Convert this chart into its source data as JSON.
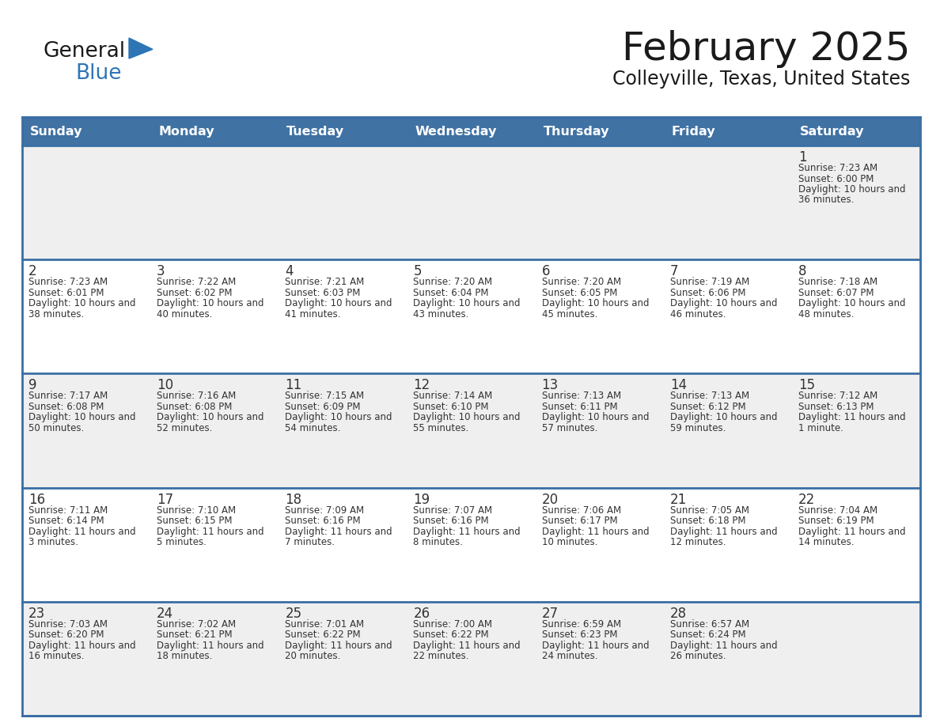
{
  "title": "February 2025",
  "subtitle": "Colleyville, Texas, United States",
  "header_bg": "#4072a4",
  "header_text": "#ffffff",
  "row_bg_odd": "#efefef",
  "row_bg_even": "#ffffff",
  "border_color": "#3a6ea5",
  "day_headers": [
    "Sunday",
    "Monday",
    "Tuesday",
    "Wednesday",
    "Thursday",
    "Friday",
    "Saturday"
  ],
  "text_color": "#333333",
  "number_color": "#333333",
  "logo_general_color": "#1a1a1a",
  "logo_blue_color": "#2e75b6",
  "days": [
    {
      "day": 1,
      "col": 6,
      "row": 0,
      "sunrise": "7:23 AM",
      "sunset": "6:00 PM",
      "daylight": "10 hours and 36 minutes."
    },
    {
      "day": 2,
      "col": 0,
      "row": 1,
      "sunrise": "7:23 AM",
      "sunset": "6:01 PM",
      "daylight": "10 hours and 38 minutes."
    },
    {
      "day": 3,
      "col": 1,
      "row": 1,
      "sunrise": "7:22 AM",
      "sunset": "6:02 PM",
      "daylight": "10 hours and 40 minutes."
    },
    {
      "day": 4,
      "col": 2,
      "row": 1,
      "sunrise": "7:21 AM",
      "sunset": "6:03 PM",
      "daylight": "10 hours and 41 minutes."
    },
    {
      "day": 5,
      "col": 3,
      "row": 1,
      "sunrise": "7:20 AM",
      "sunset": "6:04 PM",
      "daylight": "10 hours and 43 minutes."
    },
    {
      "day": 6,
      "col": 4,
      "row": 1,
      "sunrise": "7:20 AM",
      "sunset": "6:05 PM",
      "daylight": "10 hours and 45 minutes."
    },
    {
      "day": 7,
      "col": 5,
      "row": 1,
      "sunrise": "7:19 AM",
      "sunset": "6:06 PM",
      "daylight": "10 hours and 46 minutes."
    },
    {
      "day": 8,
      "col": 6,
      "row": 1,
      "sunrise": "7:18 AM",
      "sunset": "6:07 PM",
      "daylight": "10 hours and 48 minutes."
    },
    {
      "day": 9,
      "col": 0,
      "row": 2,
      "sunrise": "7:17 AM",
      "sunset": "6:08 PM",
      "daylight": "10 hours and 50 minutes."
    },
    {
      "day": 10,
      "col": 1,
      "row": 2,
      "sunrise": "7:16 AM",
      "sunset": "6:08 PM",
      "daylight": "10 hours and 52 minutes."
    },
    {
      "day": 11,
      "col": 2,
      "row": 2,
      "sunrise": "7:15 AM",
      "sunset": "6:09 PM",
      "daylight": "10 hours and 54 minutes."
    },
    {
      "day": 12,
      "col": 3,
      "row": 2,
      "sunrise": "7:14 AM",
      "sunset": "6:10 PM",
      "daylight": "10 hours and 55 minutes."
    },
    {
      "day": 13,
      "col": 4,
      "row": 2,
      "sunrise": "7:13 AM",
      "sunset": "6:11 PM",
      "daylight": "10 hours and 57 minutes."
    },
    {
      "day": 14,
      "col": 5,
      "row": 2,
      "sunrise": "7:13 AM",
      "sunset": "6:12 PM",
      "daylight": "10 hours and 59 minutes."
    },
    {
      "day": 15,
      "col": 6,
      "row": 2,
      "sunrise": "7:12 AM",
      "sunset": "6:13 PM",
      "daylight": "11 hours and 1 minute."
    },
    {
      "day": 16,
      "col": 0,
      "row": 3,
      "sunrise": "7:11 AM",
      "sunset": "6:14 PM",
      "daylight": "11 hours and 3 minutes."
    },
    {
      "day": 17,
      "col": 1,
      "row": 3,
      "sunrise": "7:10 AM",
      "sunset": "6:15 PM",
      "daylight": "11 hours and 5 minutes."
    },
    {
      "day": 18,
      "col": 2,
      "row": 3,
      "sunrise": "7:09 AM",
      "sunset": "6:16 PM",
      "daylight": "11 hours and 7 minutes."
    },
    {
      "day": 19,
      "col": 3,
      "row": 3,
      "sunrise": "7:07 AM",
      "sunset": "6:16 PM",
      "daylight": "11 hours and 8 minutes."
    },
    {
      "day": 20,
      "col": 4,
      "row": 3,
      "sunrise": "7:06 AM",
      "sunset": "6:17 PM",
      "daylight": "11 hours and 10 minutes."
    },
    {
      "day": 21,
      "col": 5,
      "row": 3,
      "sunrise": "7:05 AM",
      "sunset": "6:18 PM",
      "daylight": "11 hours and 12 minutes."
    },
    {
      "day": 22,
      "col": 6,
      "row": 3,
      "sunrise": "7:04 AM",
      "sunset": "6:19 PM",
      "daylight": "11 hours and 14 minutes."
    },
    {
      "day": 23,
      "col": 0,
      "row": 4,
      "sunrise": "7:03 AM",
      "sunset": "6:20 PM",
      "daylight": "11 hours and 16 minutes."
    },
    {
      "day": 24,
      "col": 1,
      "row": 4,
      "sunrise": "7:02 AM",
      "sunset": "6:21 PM",
      "daylight": "11 hours and 18 minutes."
    },
    {
      "day": 25,
      "col": 2,
      "row": 4,
      "sunrise": "7:01 AM",
      "sunset": "6:22 PM",
      "daylight": "11 hours and 20 minutes."
    },
    {
      "day": 26,
      "col": 3,
      "row": 4,
      "sunrise": "7:00 AM",
      "sunset": "6:22 PM",
      "daylight": "11 hours and 22 minutes."
    },
    {
      "day": 27,
      "col": 4,
      "row": 4,
      "sunrise": "6:59 AM",
      "sunset": "6:23 PM",
      "daylight": "11 hours and 24 minutes."
    },
    {
      "day": 28,
      "col": 5,
      "row": 4,
      "sunrise": "6:57 AM",
      "sunset": "6:24 PM",
      "daylight": "11 hours and 26 minutes."
    }
  ]
}
